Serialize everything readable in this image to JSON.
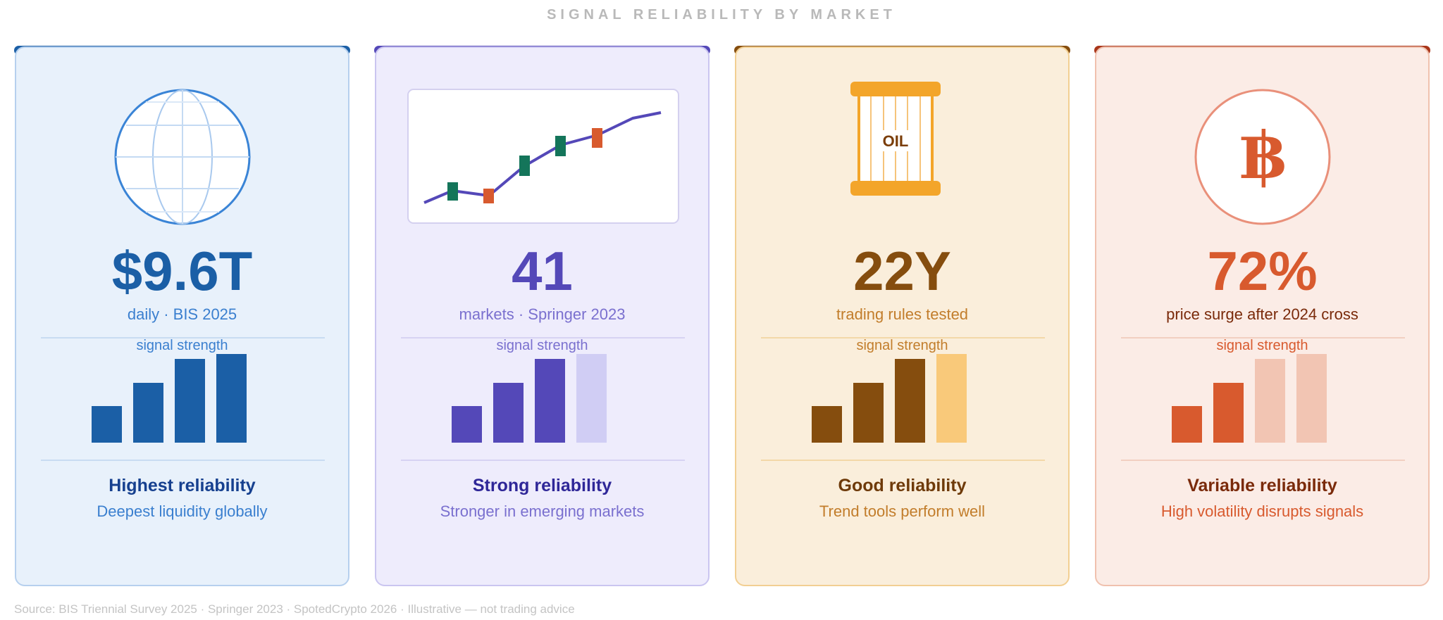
{
  "title": "SIGNAL RELIABILITY BY MARKET",
  "source": "Source: BIS Triennial Survey 2025 · Springer 2023 · SpotedCrypto 2026 · Illustrative — not trading advice",
  "signal_strength_label": "signal strength",
  "cards": [
    {
      "market_icon": "globe-icon",
      "value": "$9.6T",
      "subtitle": "daily · BIS 2025",
      "signal_strength": 4,
      "signal_max": 4,
      "reliability": "Highest reliability",
      "description": "Deepest liquidity globally",
      "colors": {
        "accent": "#1b5fa6",
        "text": "#3a7fcf",
        "title": "#16408f",
        "bg": "#e8f1fb",
        "border": "#b6d0ee",
        "dim": "#1b5fa6"
      }
    },
    {
      "market_icon": "candlestick-chart-icon",
      "value": "41",
      "subtitle": "markets · Springer 2023",
      "signal_strength": 3,
      "signal_max": 4,
      "reliability": "Strong reliability",
      "description": "Stronger in emerging markets",
      "colors": {
        "accent": "#5448b8",
        "text": "#7a70cf",
        "title": "#2f2798",
        "bg": "#eeecfc",
        "border": "#cac5f0",
        "dim": "#d0cdf4"
      }
    },
    {
      "market_icon": "oil-barrel-icon",
      "value": "22Y",
      "oil_label": "OIL",
      "subtitle": "trading rules tested",
      "signal_strength": 3,
      "signal_max": 4,
      "reliability": "Good reliability",
      "description": "Trend tools perform well",
      "colors": {
        "accent": "#854d0e",
        "text": "#c27d2b",
        "title": "#6e3a09",
        "bg": "#faeedb",
        "border": "#f2cf92",
        "dim": "#f9c97a"
      }
    },
    {
      "market_icon": "bitcoin-icon",
      "value": "72%",
      "subtitle": "price surge after 2024 cross",
      "signal_strength": 2,
      "signal_max": 4,
      "reliability": "Variable reliability",
      "description": "High volatility disrupts signals",
      "colors": {
        "accent": "#d85a2e",
        "text": "#d85a2e",
        "title": "#7a2a0a",
        "bg": "#fbece6",
        "border": "#f0c1ae",
        "dim": "#f2c5b3"
      }
    }
  ]
}
